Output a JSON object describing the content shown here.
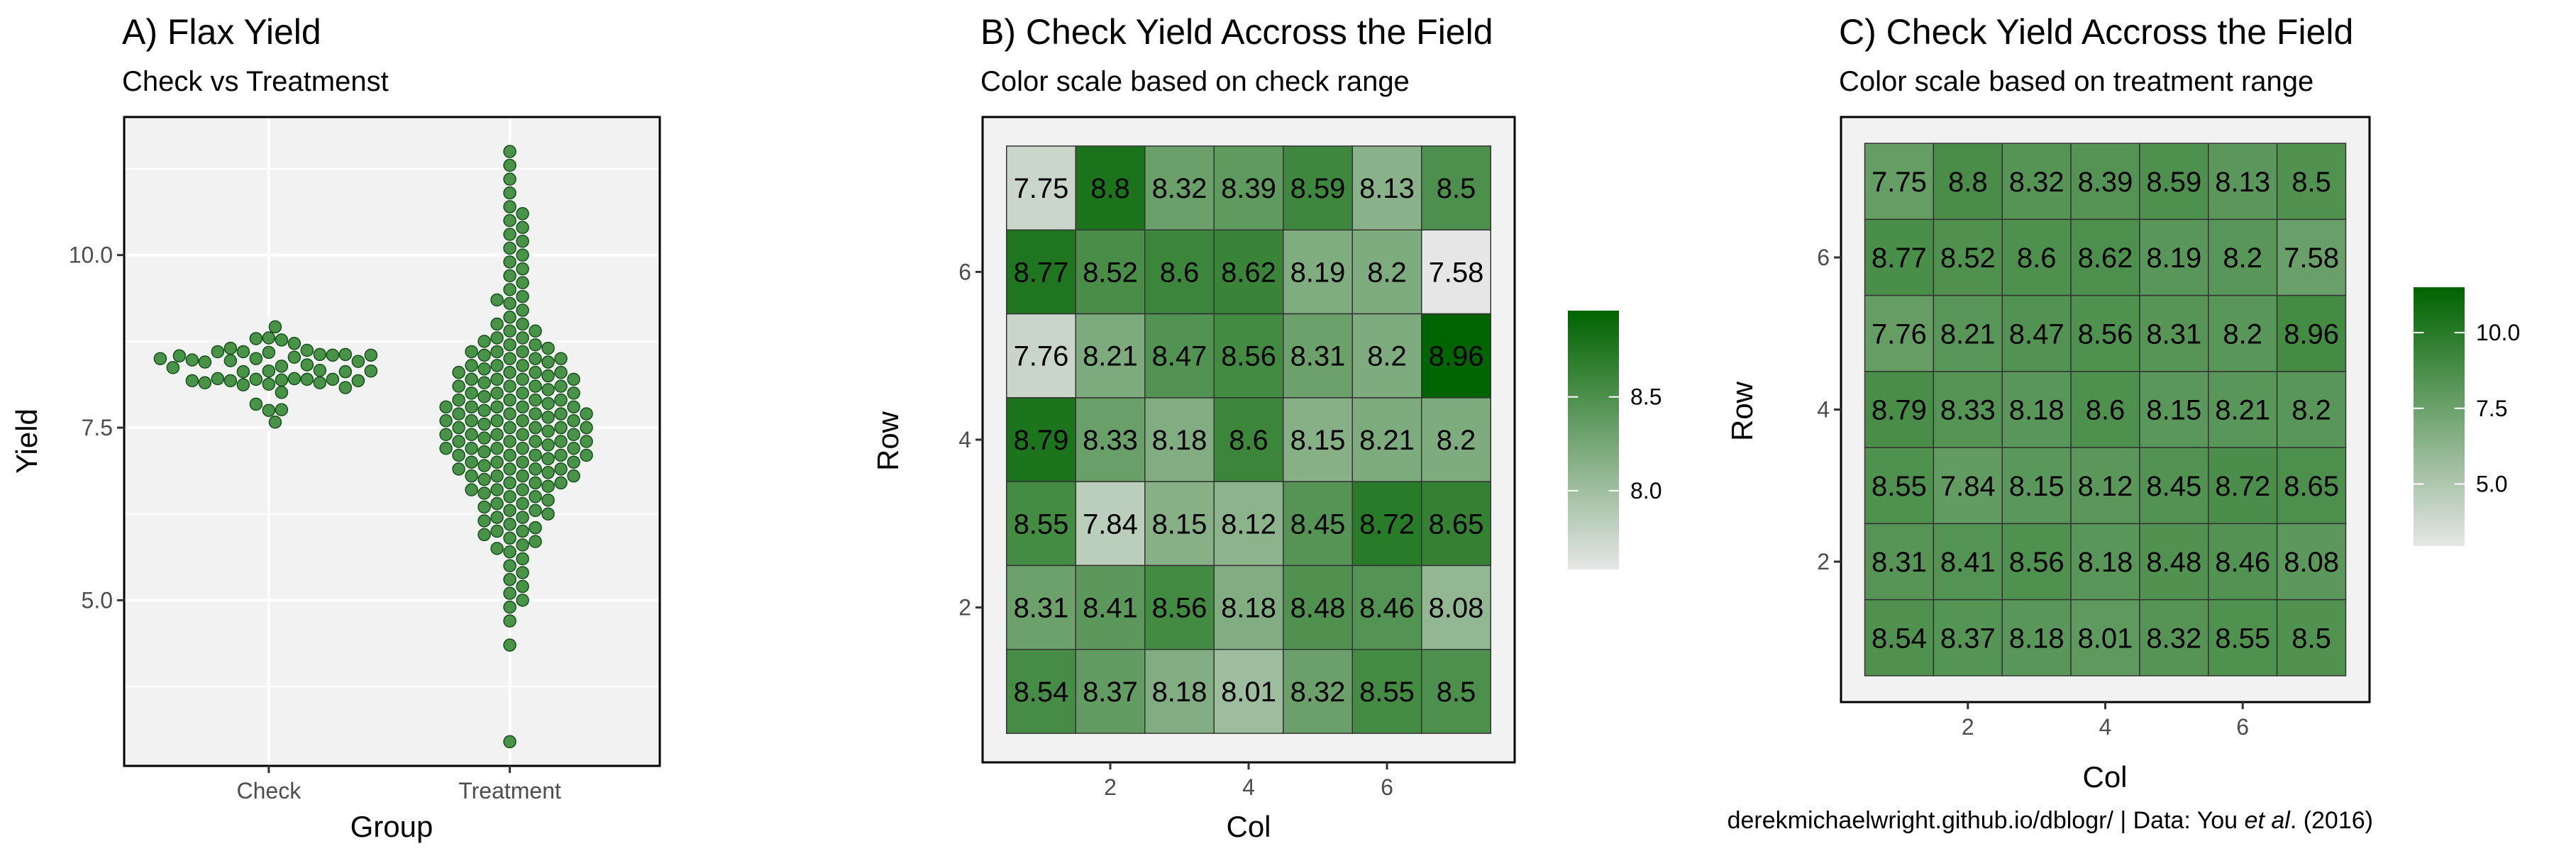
{
  "caption": {
    "text": "derekmichaelwright.github.io/dblogr/ | Data: You ",
    "italic": "et al",
    "suffix": ". (2016)"
  },
  "chart_data": [
    {
      "type": "scatter",
      "subtype": "beeswarm",
      "title": "A) Flax Yield",
      "subtitle": "Check vs Treatmenst",
      "xlabel": "Group",
      "ylabel": "Yield",
      "categories": [
        "Check",
        "Treatment"
      ],
      "ylim": [
        2.6,
        12.0
      ],
      "yticks": [
        5.0,
        7.5,
        10.0
      ],
      "ytick_labels": [
        "5.0",
        "7.5",
        "10.0"
      ],
      "point_color": "#1e7a1e",
      "grid": true,
      "series": [
        {
          "category": "Check",
          "values": [
            7.75,
            8.8,
            8.32,
            8.39,
            8.59,
            8.13,
            8.5,
            8.77,
            8.52,
            8.6,
            8.62,
            8.19,
            8.2,
            7.58,
            7.76,
            8.21,
            8.47,
            8.56,
            8.31,
            8.2,
            8.96,
            8.79,
            8.33,
            8.18,
            8.6,
            8.15,
            8.21,
            8.2,
            8.55,
            7.84,
            8.15,
            8.12,
            8.45,
            8.72,
            8.65,
            8.31,
            8.41,
            8.56,
            8.18,
            8.48,
            8.46,
            8.08,
            8.54,
            8.37,
            8.18,
            8.01,
            8.32,
            8.55,
            8.5
          ]
        },
        {
          "category": "Treatment",
          "values": [
            11.5,
            11.3,
            11.1,
            10.9,
            10.7,
            10.6,
            10.5,
            10.4,
            10.3,
            10.2,
            10.1,
            10.0,
            9.9,
            9.8,
            9.7,
            9.6,
            9.5,
            9.4,
            9.35,
            9.3,
            9.2,
            9.1,
            9.0,
            9.0,
            8.9,
            8.9,
            8.8,
            8.8,
            8.75,
            8.7,
            8.7,
            8.65,
            8.6,
            8.6,
            8.6,
            8.55,
            8.5,
            8.5,
            8.5,
            8.45,
            8.4,
            8.4,
            8.4,
            8.35,
            8.3,
            8.3,
            8.3,
            8.3,
            8.25,
            8.2,
            8.2,
            8.2,
            8.2,
            8.15,
            8.1,
            8.1,
            8.1,
            8.1,
            8.05,
            8.0,
            8.0,
            8.0,
            8.0,
            7.95,
            7.9,
            7.9,
            7.9,
            7.9,
            7.85,
            7.8,
            7.8,
            7.8,
            7.8,
            7.8,
            7.75,
            7.7,
            7.7,
            7.7,
            7.7,
            7.7,
            7.65,
            7.6,
            7.6,
            7.6,
            7.6,
            7.6,
            7.55,
            7.5,
            7.5,
            7.5,
            7.5,
            7.5,
            7.45,
            7.4,
            7.4,
            7.4,
            7.4,
            7.4,
            7.35,
            7.3,
            7.3,
            7.3,
            7.3,
            7.3,
            7.25,
            7.2,
            7.2,
            7.2,
            7.2,
            7.2,
            7.15,
            7.1,
            7.1,
            7.1,
            7.1,
            7.1,
            7.05,
            7.0,
            7.0,
            7.0,
            7.0,
            6.95,
            6.9,
            6.9,
            6.9,
            6.9,
            6.85,
            6.8,
            6.8,
            6.8,
            6.8,
            6.75,
            6.7,
            6.7,
            6.7,
            6.65,
            6.6,
            6.6,
            6.6,
            6.55,
            6.5,
            6.5,
            6.45,
            6.4,
            6.4,
            6.35,
            6.3,
            6.3,
            6.25,
            6.2,
            6.2,
            6.15,
            6.1,
            6.05,
            6.0,
            6.0,
            5.95,
            5.9,
            5.85,
            5.8,
            5.75,
            5.7,
            5.6,
            5.5,
            5.4,
            5.3,
            5.2,
            5.1,
            5.0,
            4.9,
            4.7,
            4.35,
            2.95
          ]
        }
      ]
    },
    {
      "type": "heatmap",
      "title": "B) Check Yield Accross the Field",
      "subtitle": "Color scale based on check range",
      "xlabel": "Col",
      "ylabel": "Row",
      "xlim": [
        0.5,
        7.5
      ],
      "ylim": [
        0.5,
        7.5
      ],
      "xticks": [
        2,
        4,
        6
      ],
      "yticks": [
        2,
        4,
        6
      ],
      "rows_top_to_bottom": [
        7,
        6,
        5,
        4,
        3,
        2,
        1
      ],
      "cols": [
        1,
        2,
        3,
        4,
        5,
        6,
        7
      ],
      "values": [
        [
          7.75,
          8.8,
          8.32,
          8.39,
          8.59,
          8.13,
          8.5
        ],
        [
          8.77,
          8.52,
          8.6,
          8.62,
          8.19,
          8.2,
          7.58
        ],
        [
          7.76,
          8.21,
          8.47,
          8.56,
          8.31,
          8.2,
          8.96
        ],
        [
          8.79,
          8.33,
          8.18,
          8.6,
          8.15,
          8.21,
          8.2
        ],
        [
          8.55,
          7.84,
          8.15,
          8.12,
          8.45,
          8.72,
          8.65
        ],
        [
          8.31,
          8.41,
          8.56,
          8.18,
          8.48,
          8.46,
          8.08
        ],
        [
          8.54,
          8.37,
          8.18,
          8.01,
          8.32,
          8.55,
          8.5
        ]
      ],
      "labels": [
        [
          "7.75",
          "8.8",
          "8.32",
          "8.39",
          "8.59",
          "8.13",
          "8.5"
        ],
        [
          "8.77",
          "8.52",
          "8.6",
          "8.62",
          "8.19",
          "8.2",
          "7.58"
        ],
        [
          "7.76",
          "8.21",
          "8.47",
          "8.56",
          "8.31",
          "8.2",
          "8.96"
        ],
        [
          "8.79",
          "8.33",
          "8.18",
          "8.6",
          "8.15",
          "8.21",
          "8.2"
        ],
        [
          "8.55",
          "7.84",
          "8.15",
          "8.12",
          "8.45",
          "8.72",
          "8.65"
        ],
        [
          "8.31",
          "8.41",
          "8.56",
          "8.18",
          "8.48",
          "8.46",
          "8.08"
        ],
        [
          "8.54",
          "8.37",
          "8.18",
          "8.01",
          "8.32",
          "8.55",
          "8.5"
        ]
      ],
      "color_low": "#e6e6e6",
      "color_high": "#006400",
      "color_range": [
        7.58,
        8.96
      ],
      "legend_ticks": [
        8.0,
        8.5
      ],
      "legend_tick_labels": [
        "8.0",
        "8.5"
      ],
      "legend_position": "right"
    },
    {
      "type": "heatmap",
      "title": "C) Check Yield Accross the Field",
      "subtitle": "Color scale based on treatment range",
      "xlabel": "Col",
      "ylabel": "Row",
      "xlim": [
        0.5,
        7.5
      ],
      "ylim": [
        0.5,
        7.5
      ],
      "xticks": [
        2,
        4,
        6
      ],
      "yticks": [
        2,
        4,
        6
      ],
      "rows_top_to_bottom": [
        7,
        6,
        5,
        4,
        3,
        2,
        1
      ],
      "cols": [
        1,
        2,
        3,
        4,
        5,
        6,
        7
      ],
      "values": [
        [
          7.75,
          8.8,
          8.32,
          8.39,
          8.59,
          8.13,
          8.5
        ],
        [
          8.77,
          8.52,
          8.6,
          8.62,
          8.19,
          8.2,
          7.58
        ],
        [
          7.76,
          8.21,
          8.47,
          8.56,
          8.31,
          8.2,
          8.96
        ],
        [
          8.79,
          8.33,
          8.18,
          8.6,
          8.15,
          8.21,
          8.2
        ],
        [
          8.55,
          7.84,
          8.15,
          8.12,
          8.45,
          8.72,
          8.65
        ],
        [
          8.31,
          8.41,
          8.56,
          8.18,
          8.48,
          8.46,
          8.08
        ],
        [
          8.54,
          8.37,
          8.18,
          8.01,
          8.32,
          8.55,
          8.5
        ]
      ],
      "labels": [
        [
          "7.75",
          "8.8",
          "8.32",
          "8.39",
          "8.59",
          "8.13",
          "8.5"
        ],
        [
          "8.77",
          "8.52",
          "8.6",
          "8.62",
          "8.19",
          "8.2",
          "7.58"
        ],
        [
          "7.76",
          "8.21",
          "8.47",
          "8.56",
          "8.31",
          "8.2",
          "8.96"
        ],
        [
          "8.79",
          "8.33",
          "8.18",
          "8.6",
          "8.15",
          "8.21",
          "8.2"
        ],
        [
          "8.55",
          "7.84",
          "8.15",
          "8.12",
          "8.45",
          "8.72",
          "8.65"
        ],
        [
          "8.31",
          "8.41",
          "8.56",
          "8.18",
          "8.48",
          "8.46",
          "8.08"
        ],
        [
          "8.54",
          "8.37",
          "8.18",
          "8.01",
          "8.32",
          "8.55",
          "8.5"
        ]
      ],
      "color_low": "#e6e6e6",
      "color_high": "#006400",
      "color_range": [
        2.95,
        11.5
      ],
      "legend_ticks": [
        5.0,
        7.5,
        10.0
      ],
      "legend_tick_labels": [
        "5.0",
        "7.5",
        "10.0"
      ],
      "legend_position": "right"
    }
  ]
}
